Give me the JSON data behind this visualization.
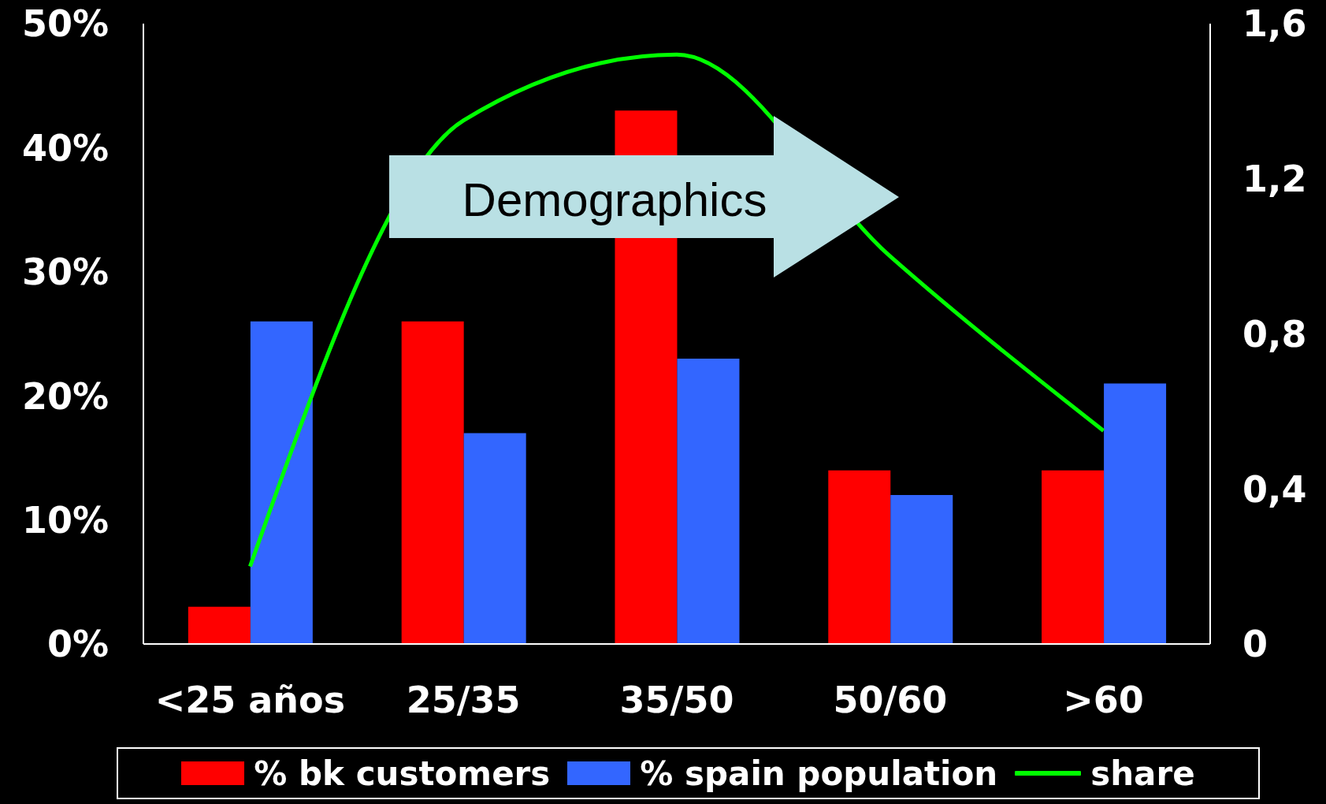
{
  "chart_data": {
    "type": "bar",
    "categories": [
      "<25 años",
      "25/35",
      "35/50",
      "50/60",
      ">60"
    ],
    "series": [
      {
        "name": "% bk customers",
        "color": "#ff0000",
        "values": [
          3,
          26,
          43,
          14,
          14
        ]
      },
      {
        "name": "% spain population",
        "color": "#3366ff",
        "values": [
          26,
          17,
          23,
          12,
          21
        ]
      },
      {
        "name": "share",
        "type": "line",
        "axis": "y2",
        "color": "#00ff00",
        "values": [
          0.2,
          1.35,
          1.52,
          1.0,
          0.55
        ]
      }
    ],
    "ylim": [
      0,
      50
    ],
    "yticks": [
      {
        "value": 0,
        "label": "0%"
      },
      {
        "value": 10,
        "label": "10%"
      },
      {
        "value": 20,
        "label": "20%"
      },
      {
        "value": 30,
        "label": "30%"
      },
      {
        "value": 40,
        "label": "40%"
      },
      {
        "value": 50,
        "label": "50%"
      }
    ],
    "y2lim": [
      0,
      1.6
    ],
    "y2ticks": [
      0,
      {
        "value": 0.4,
        "label": "0,4"
      },
      {
        "value": 0.8,
        "label": "0,8"
      },
      {
        "value": 1.2,
        "label": "1,2"
      },
      {
        "value": 1.6,
        "label": "1,6"
      }
    ],
    "annotations": [
      "Demographics"
    ],
    "legend": "bottom"
  }
}
